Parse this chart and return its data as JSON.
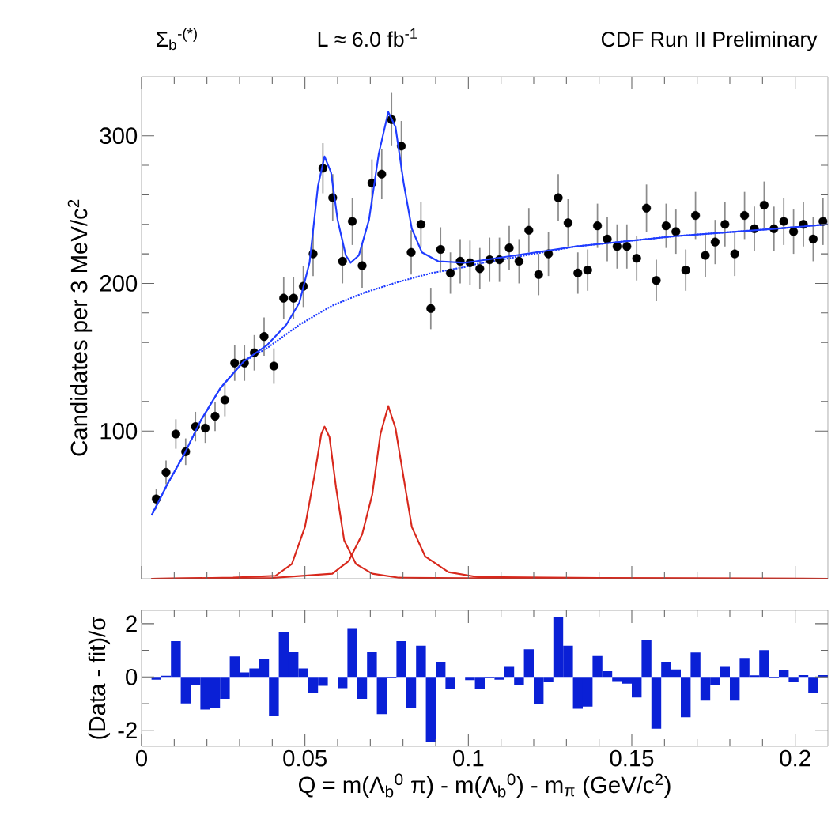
{
  "chart_data": [
    {
      "type": "scatter",
      "ylabel": "Candidates per 3 MeV/c$^{2}$",
      "annotations": [
        "Σ$_{b}$$^{-(*)}$",
        "L ≈ 6.0 fb$^{-1}$",
        "CDF Run II Preliminary"
      ],
      "x": [
        0.0045,
        0.0075,
        0.0105,
        0.0135,
        0.0165,
        0.0195,
        0.0225,
        0.0255,
        0.0285,
        0.0315,
        0.0345,
        0.0375,
        0.0405,
        0.0435,
        0.0465,
        0.0495,
        0.0525,
        0.0555,
        0.0585,
        0.0615,
        0.0645,
        0.0675,
        0.0705,
        0.0735,
        0.0765,
        0.0795,
        0.0825,
        0.0855,
        0.0885,
        0.0915,
        0.0945,
        0.0975,
        0.1005,
        0.1035,
        0.1065,
        0.1095,
        0.1125,
        0.1155,
        0.1185,
        0.1215,
        0.1245,
        0.1275,
        0.1305,
        0.1335,
        0.1365,
        0.1395,
        0.1425,
        0.1455,
        0.1485,
        0.1515,
        0.1545,
        0.1575,
        0.1605,
        0.1635,
        0.1665,
        0.1695,
        0.1725,
        0.1755,
        0.1785,
        0.1815,
        0.1845,
        0.1875,
        0.1905,
        0.1935,
        0.1965,
        0.1995,
        0.2025,
        0.2055,
        0.2085
      ],
      "series": [
        {
          "type": "line",
          "color": "#d8281c",
          "x": [
            0.003,
            0.028,
            0.041,
            0.046,
            0.05,
            0.053,
            0.055,
            0.056,
            0.0575,
            0.0595,
            0.062,
            0.0656,
            0.0706,
            0.0787,
            0.1,
            0.21
          ],
          "values": [
            0,
            0.7,
            2,
            10,
            35,
            71,
            98,
            103,
            96,
            62,
            26,
            10,
            3.4,
            0.7,
            0.3,
            0
          ]
        },
        {
          "type": "line",
          "color": "#d8281c",
          "x": [
            0.003,
            0.04,
            0.0584,
            0.0634,
            0.0675,
            0.0706,
            0.0731,
            0.0755,
            0.0777,
            0.0797,
            0.0827,
            0.0868,
            0.0939,
            0.103,
            0.14,
            0.21
          ],
          "values": [
            0,
            0.5,
            3.4,
            12,
            30,
            57,
            98,
            117,
            102,
            75,
            35,
            15,
            4.5,
            1.1,
            0.5,
            0
          ]
        },
        {
          "type": "line",
          "color": "#1f3cff",
          "line_style": "dotted",
          "x": [
            0.0031,
            0.0079,
            0.013,
            0.0181,
            0.0241,
            0.0312,
            0.0383,
            0.0483,
            0.0584,
            0.0685,
            0.0786,
            0.0887,
            0.0988,
            0.1022,
            0.1328,
            0.1633,
            0.1939,
            0.21
          ],
          "values": [
            43,
            64,
            84,
            107,
            129,
            147,
            156,
            172,
            185,
            194,
            201,
            207,
            211,
            213,
            225,
            232,
            237,
            240
          ]
        },
        {
          "type": "scatter",
          "color": "#000000",
          "values": [
            54,
            72,
            98,
            86,
            103,
            102,
            110,
            121,
            146,
            146,
            153,
            164,
            144,
            190,
            190,
            198,
            220,
            278,
            258,
            215,
            242,
            212,
            268,
            274,
            311,
            293,
            221,
            240,
            183,
            223,
            207,
            215,
            214,
            210,
            216,
            216,
            224,
            215,
            236,
            206,
            220,
            258,
            241,
            207,
            209,
            239,
            230,
            225,
            225,
            217,
            251,
            202,
            239,
            235,
            209,
            246,
            219,
            228,
            240,
            220,
            246,
            237,
            253,
            237,
            242,
            235,
            240,
            230,
            242
          ],
          "errors": [
            7,
            8,
            10,
            9,
            10,
            10,
            10,
            11,
            12,
            12,
            12,
            13,
            12,
            14,
            14,
            14,
            15,
            17,
            16,
            15,
            16,
            15,
            16,
            17,
            18,
            17,
            15,
            15,
            14,
            15,
            14,
            15,
            15,
            14,
            15,
            15,
            15,
            15,
            15,
            14,
            15,
            16,
            16,
            14,
            14,
            15,
            15,
            15,
            15,
            15,
            16,
            14,
            15,
            15,
            14,
            16,
            15,
            15,
            15,
            15,
            16,
            15,
            16,
            15,
            16,
            15,
            15,
            15,
            16
          ]
        },
        {
          "type": "line",
          "color": "#1f3cff",
          "x": [
            0.0031,
            0.0079,
            0.013,
            0.0181,
            0.0241,
            0.0312,
            0.0383,
            0.0443,
            0.0483,
            0.0514,
            0.054,
            0.056,
            0.058,
            0.06,
            0.0625,
            0.064,
            0.0665,
            0.0696,
            0.0726,
            0.0755,
            0.0777,
            0.0802,
            0.0827,
            0.0858,
            0.0908,
            0.099,
            0.1022,
            0.1328,
            0.1633,
            0.1939,
            0.21
          ],
          "values": [
            43,
            64,
            84,
            107,
            129,
            147,
            158,
            172,
            187,
            214,
            266,
            286,
            275,
            243,
            219,
            214,
            219,
            243,
            288,
            316,
            306,
            268,
            237,
            221,
            215,
            214,
            215,
            225,
            232,
            237,
            240
          ]
        }
      ],
      "xlim": [
        0,
        0.21
      ],
      "ylim": [
        0,
        340
      ],
      "xticks": [
        0,
        0.05,
        0.1,
        0.15,
        0.2
      ],
      "yticks": [
        100,
        200,
        300
      ],
      "tick_labels": "y"
    },
    {
      "type": "bar",
      "xlabel": "Q = m(Λ$_{b}$$^{0}$ π) - m(Λ$_{b}$$^{0}$) - m$_{π}$  (GeV/c$^{2}$)",
      "ylabel": "(Data - fit)/σ",
      "x": [
        0.0045,
        0.0075,
        0.0105,
        0.0135,
        0.0165,
        0.0195,
        0.0225,
        0.0255,
        0.0285,
        0.0315,
        0.0345,
        0.0375,
        0.0405,
        0.0435,
        0.0465,
        0.0495,
        0.0525,
        0.0555,
        0.0585,
        0.0615,
        0.0645,
        0.0675,
        0.0705,
        0.0735,
        0.0765,
        0.0795,
        0.0825,
        0.0855,
        0.0885,
        0.0915,
        0.0945,
        0.0975,
        0.1005,
        0.1035,
        0.1065,
        0.1095,
        0.1125,
        0.1155,
        0.1185,
        0.1215,
        0.1245,
        0.1275,
        0.1305,
        0.1335,
        0.1365,
        0.1395,
        0.1425,
        0.1455,
        0.1485,
        0.1515,
        0.1545,
        0.1575,
        0.1605,
        0.1635,
        0.1665,
        0.1695,
        0.1725,
        0.1755,
        0.1785,
        0.1815,
        0.1845,
        0.1875,
        0.1905,
        0.1935,
        0.1965,
        0.1995,
        0.2025,
        0.2055,
        0.2085
      ],
      "values": [
        -0.1,
        0.05,
        1.34,
        -0.99,
        -0.3,
        -1.22,
        -1.16,
        -0.82,
        0.77,
        0.17,
        0.32,
        0.67,
        -1.47,
        1.67,
        0.93,
        0.32,
        -0.6,
        -0.33,
        null,
        -0.42,
        1.83,
        -0.82,
        0.93,
        -1.39,
        -0.05,
        1.34,
        -1.15,
        1.17,
        -2.43,
        0.56,
        -0.46,
        null,
        -0.12,
        -0.46,
        -0.02,
        -0.1,
        0.38,
        -0.3,
        1.04,
        -1.02,
        -0.2,
        2.26,
        1.17,
        -1.19,
        -1.11,
        0.79,
        0.22,
        -0.18,
        -0.25,
        -0.77,
        1.37,
        -1.94,
        0.55,
        0.28,
        -1.51,
        0.92,
        -0.89,
        -0.32,
        0.38,
        -0.89,
        0.71,
        0.06,
        1.01,
        -0.02,
        0.27,
        -0.2,
        0.07,
        -0.6,
        0.07
      ],
      "color": "#0a20d6",
      "xlim": [
        0,
        0.21
      ],
      "ylim": [
        -2.6,
        2.5
      ],
      "xticks": [
        0,
        0.05,
        0.1,
        0.15,
        0.2
      ],
      "yticks": [
        -2,
        0,
        2
      ]
    }
  ]
}
